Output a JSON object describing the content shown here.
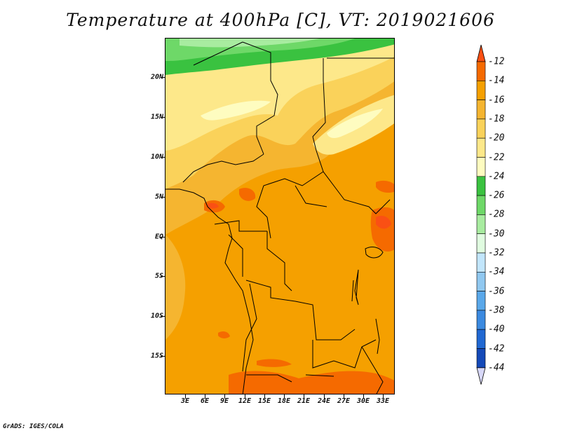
{
  "title": "Temperature at 400hPa [C], VT: 2019021606",
  "credit": "GrADS: IGES/COLA",
  "lat_labels": [
    "20N",
    "15N",
    "10N",
    "5N",
    "EQ",
    "5S",
    "10S",
    "15S"
  ],
  "lon_labels": [
    "3E",
    "6E",
    "9E",
    "12E",
    "15E",
    "18E",
    "21E",
    "24E",
    "27E",
    "30E",
    "33E"
  ],
  "colorbar": {
    "labels": [
      "-12",
      "-14",
      "-16",
      "-18",
      "-20",
      "-22",
      "-24",
      "-26",
      "-28",
      "-30",
      "-32",
      "-34",
      "-36",
      "-38",
      "-40",
      "-42",
      "-44"
    ],
    "colors": [
      "#fa5014",
      "#f56a00",
      "#f5a000",
      "#f5b530",
      "#fad25a",
      "#fde88a",
      "#fefcc0",
      "#3ac240",
      "#6ed868",
      "#a8eca0",
      "#e0fce0",
      "#c2e6fc",
      "#90c8f0",
      "#5aa8ea",
      "#3b8ae0",
      "#2068d2",
      "#1449b8",
      "#0c2a9a",
      "#08105e",
      "#d8d8f8"
    ]
  }
}
